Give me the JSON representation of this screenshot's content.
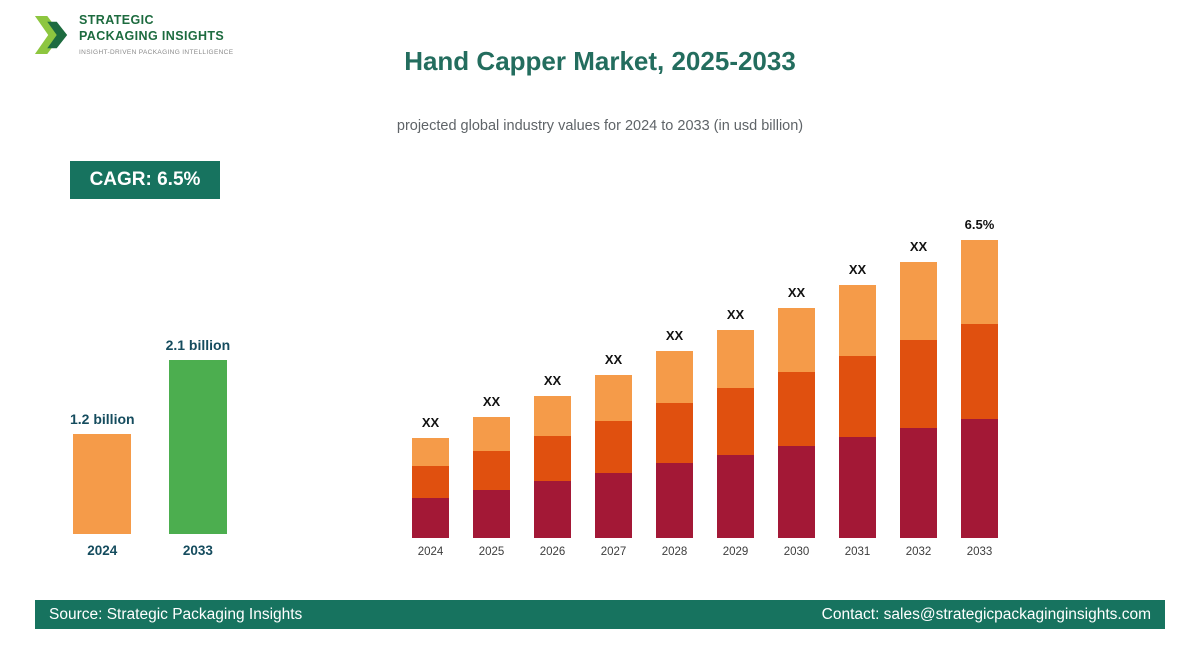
{
  "logo": {
    "name_line1": "STRATEGIC",
    "name_line2": "PACKAGING INSIGHTS",
    "tagline": "INSIGHT-DRIVEN PACKAGING INTELLIGENCE",
    "colors": {
      "dark_green": "#1d6b3f",
      "light_green": "#8dc63f"
    }
  },
  "header": {
    "title": "Hand Capper Market, 2025-2033",
    "subtitle": "projected global industry values for 2024 to 2033 (in usd billion)"
  },
  "cagr_badge": {
    "label": "CAGR: 6.5%",
    "bg": "#17735f"
  },
  "footer": {
    "source": "Source: Strategic Packaging Insights",
    "contact": "Contact: sales@strategicpackaginginsights.com",
    "bg": "#17735f"
  },
  "chart_data": [
    {
      "type": "bar",
      "name": "summary-comparison",
      "categories": [
        "2024",
        "2033"
      ],
      "values": [
        1.2,
        2.1
      ],
      "value_labels": [
        "1.2 billion",
        "2.1 billion"
      ],
      "unit": "usd billion",
      "bar_colors": [
        "#f59b49",
        "#4cae4f"
      ],
      "label_color": "#154c5e"
    },
    {
      "type": "bar",
      "subtype": "stacked",
      "name": "projected-values-2024-2033",
      "categories": [
        "2024",
        "2025",
        "2026",
        "2027",
        "2028",
        "2029",
        "2030",
        "2031",
        "2032",
        "2033"
      ],
      "bar_labels": [
        "XX",
        "XX",
        "XX",
        "XX",
        "XX",
        "XX",
        "XX",
        "XX",
        "XX",
        "6.5%"
      ],
      "values_hidden": true,
      "series": [
        {
          "name": "segment-bottom",
          "color": "#a31836",
          "values": [
            40,
            48,
            57,
            65,
            75,
            83,
            92,
            101,
            110,
            119
          ]
        },
        {
          "name": "segment-middle",
          "color": "#e0500f",
          "values": [
            32,
            39,
            45,
            52,
            60,
            67,
            74,
            81,
            88,
            95
          ]
        },
        {
          "name": "segment-top",
          "color": "#f59b49",
          "values": [
            28,
            34,
            40,
            46,
            52,
            58,
            64,
            71,
            78,
            84
          ]
        }
      ],
      "legend": false,
      "grid": false
    }
  ]
}
